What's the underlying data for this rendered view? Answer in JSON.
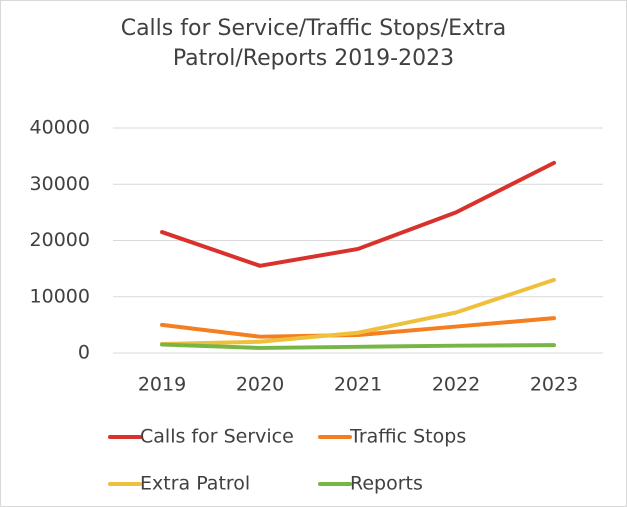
{
  "chart_data": {
    "type": "line",
    "title": "Calls for Service/Traffic Stops/Extra Patrol/Reports 2019-2023",
    "categories": [
      "2019",
      "2020",
      "2021",
      "2022",
      "2023"
    ],
    "series": [
      {
        "name": "Calls for Service",
        "color": "#d9312b",
        "values": [
          21500,
          15500,
          18500,
          25000,
          33800
        ]
      },
      {
        "name": "Traffic Stops",
        "color": "#f47e20",
        "values": [
          5000,
          2900,
          3200,
          4700,
          6200
        ]
      },
      {
        "name": "Extra Patrol",
        "color": "#efc03b",
        "values": [
          1600,
          2000,
          3600,
          7200,
          13000
        ]
      },
      {
        "name": "Reports",
        "color": "#78b547",
        "values": [
          1500,
          900,
          1100,
          1300,
          1400
        ]
      }
    ],
    "ylim": [
      0,
      40000
    ],
    "yticks": [
      0,
      10000,
      20000,
      30000,
      40000
    ],
    "grid": true
  }
}
